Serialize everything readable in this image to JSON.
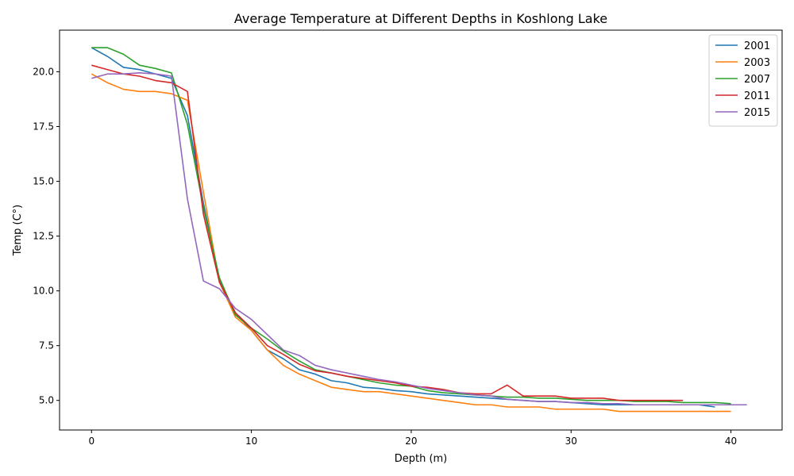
{
  "chart_data": {
    "type": "line",
    "title": "Average Temperature at Different Depths in Koshlong Lake",
    "xlabel": "Depth (m)",
    "ylabel": "Temp (C°)",
    "xlim": [
      -2,
      43.2
    ],
    "ylim": [
      3.65,
      21.9
    ],
    "x_ticks": [
      0,
      10,
      20,
      30,
      40
    ],
    "x_tick_labels": [
      "0",
      "10",
      "20",
      "30",
      "40"
    ],
    "y_ticks": [
      5.0,
      7.5,
      10.0,
      12.5,
      15.0,
      17.5,
      20.0
    ],
    "y_tick_labels": [
      "5.0",
      "7.5",
      "10.0",
      "12.5",
      "15.0",
      "17.5",
      "20.0"
    ],
    "grid": false,
    "legend": {
      "position": "top-right"
    },
    "series": [
      {
        "name": "2001",
        "color": "#1f77b4",
        "x": [
          0,
          1,
          2,
          3,
          4,
          5,
          6,
          7,
          8,
          9,
          10,
          11,
          12,
          13,
          14,
          15,
          16,
          17,
          18,
          19,
          20,
          21,
          22,
          23,
          24,
          25,
          26,
          27,
          28,
          29,
          30,
          31,
          32,
          33,
          34,
          35,
          36,
          37,
          38,
          39
        ],
        "y": [
          21.1,
          20.7,
          20.2,
          20.1,
          19.9,
          19.7,
          18.0,
          14.0,
          10.5,
          9.0,
          8.2,
          7.3,
          6.9,
          6.4,
          6.2,
          5.9,
          5.8,
          5.6,
          5.55,
          5.45,
          5.4,
          5.3,
          5.25,
          5.2,
          5.15,
          5.1,
          5.05,
          5.0,
          4.95,
          4.95,
          4.9,
          4.85,
          4.8,
          4.8,
          4.8,
          4.8,
          4.8,
          4.8,
          4.8,
          4.7
        ]
      },
      {
        "name": "2003",
        "color": "#ff7f0e",
        "x": [
          0,
          1,
          2,
          3,
          4,
          5,
          6,
          7,
          8,
          9,
          10,
          11,
          12,
          13,
          14,
          15,
          16,
          17,
          18,
          19,
          20,
          21,
          22,
          23,
          24,
          25,
          26,
          27,
          28,
          29,
          30,
          31,
          32,
          33,
          34,
          35,
          36,
          37,
          38,
          39,
          40
        ],
        "y": [
          19.9,
          19.5,
          19.2,
          19.1,
          19.1,
          19.0,
          18.7,
          14.5,
          10.4,
          8.8,
          8.2,
          7.3,
          6.6,
          6.2,
          5.9,
          5.6,
          5.5,
          5.4,
          5.4,
          5.3,
          5.2,
          5.1,
          5.0,
          4.9,
          4.8,
          4.8,
          4.7,
          4.7,
          4.7,
          4.6,
          4.6,
          4.6,
          4.6,
          4.5,
          4.5,
          4.5,
          4.5,
          4.5,
          4.5,
          4.5,
          4.5
        ]
      },
      {
        "name": "2007",
        "color": "#2ca02c",
        "x": [
          0,
          1,
          2,
          3,
          4,
          5,
          6,
          7,
          8,
          9,
          10,
          11,
          12,
          13,
          14,
          15,
          16,
          17,
          18,
          19,
          20,
          21,
          22,
          23,
          24,
          25,
          26,
          27,
          28,
          29,
          30,
          31,
          32,
          33,
          34,
          35,
          36,
          37,
          38,
          39,
          40
        ],
        "y": [
          21.1,
          21.1,
          20.8,
          20.3,
          20.15,
          19.95,
          17.6,
          13.8,
          10.6,
          8.9,
          8.3,
          7.8,
          7.25,
          6.8,
          6.4,
          6.25,
          6.1,
          5.95,
          5.8,
          5.7,
          5.65,
          5.45,
          5.35,
          5.3,
          5.25,
          5.2,
          5.15,
          5.15,
          5.1,
          5.1,
          5.05,
          5.0,
          5.0,
          5.0,
          4.95,
          4.95,
          4.95,
          4.9,
          4.9,
          4.9,
          4.85
        ]
      },
      {
        "name": "2011",
        "color": "#d62728",
        "x": [
          0,
          1,
          2,
          3,
          4,
          5,
          6,
          7,
          8,
          9,
          10,
          11,
          12,
          13,
          14,
          15,
          16,
          17,
          18,
          19,
          20,
          21,
          22,
          23,
          24,
          25,
          26,
          27,
          28,
          29,
          30,
          31,
          32,
          33,
          34,
          35,
          36,
          37
        ],
        "y": [
          20.3,
          20.1,
          19.9,
          19.8,
          19.6,
          19.5,
          19.1,
          13.5,
          10.4,
          9.0,
          8.3,
          7.5,
          7.1,
          6.65,
          6.35,
          6.25,
          6.1,
          6.0,
          5.9,
          5.8,
          5.65,
          5.6,
          5.5,
          5.35,
          5.3,
          5.3,
          5.7,
          5.2,
          5.2,
          5.2,
          5.1,
          5.1,
          5.1,
          5.0,
          5.0,
          5.0,
          5.0,
          5.0
        ]
      },
      {
        "name": "2015",
        "color": "#9467bd",
        "x": [
          0,
          1,
          2,
          3,
          4,
          5,
          6,
          7,
          8,
          9,
          10,
          11,
          12,
          13,
          14,
          15,
          16,
          17,
          18,
          19,
          20,
          21,
          22,
          23,
          24,
          25,
          26,
          27,
          28,
          29,
          30,
          31,
          32,
          33,
          34,
          35,
          36,
          37,
          38,
          39,
          40,
          41
        ],
        "y": [
          19.7,
          19.9,
          19.9,
          19.95,
          19.9,
          19.8,
          14.2,
          10.45,
          10.1,
          9.2,
          8.7,
          8.0,
          7.3,
          7.05,
          6.6,
          6.4,
          6.25,
          6.1,
          5.95,
          5.85,
          5.7,
          5.55,
          5.45,
          5.35,
          5.25,
          5.2,
          5.05,
          5.0,
          4.95,
          4.95,
          4.9,
          4.9,
          4.85,
          4.85,
          4.8,
          4.8,
          4.8,
          4.8,
          4.8,
          4.8,
          4.8,
          4.8
        ]
      }
    ]
  }
}
